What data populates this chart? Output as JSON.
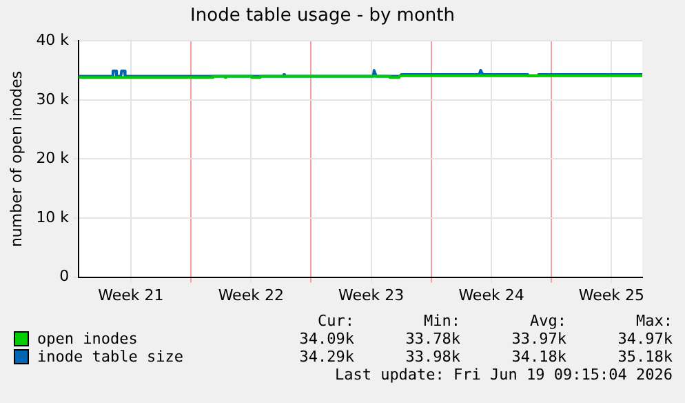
{
  "chart_data": {
    "type": "line",
    "title": "Inode table usage - by month",
    "ylabel": "number of open inodes",
    "xlim": [
      "2026-05-18T11:00",
      "2026-06-20T07:00"
    ],
    "xticks": [
      {
        "value": "2026-05-21T12:00",
        "label": "Week 21"
      },
      {
        "value": "2026-05-25",
        "label": null
      },
      {
        "value": "2026-05-28T12:00",
        "label": "Week 22"
      },
      {
        "value": "2026-06-01",
        "label": null
      },
      {
        "value": "2026-06-04T12:00",
        "label": "Week 23"
      },
      {
        "value": "2026-06-08",
        "label": null
      },
      {
        "value": "2026-06-11T12:00",
        "label": "Week 24"
      },
      {
        "value": "2026-06-15",
        "label": null
      },
      {
        "value": "2026-06-18T12:00",
        "label": "Week 25"
      }
    ],
    "ylim": [
      0,
      40000
    ],
    "yticks": [
      0,
      {
        "value": 10000,
        "label": "10 k"
      },
      {
        "value": 20000,
        "label": "20 k"
      },
      {
        "value": 30000,
        "label": "30 k"
      },
      {
        "value": 40000,
        "label": "40 k"
      }
    ],
    "grid": true,
    "legend": "bottom",
    "marker": "none",
    "line_style": "solid",
    "series": [
      {
        "name": "open inodes",
        "color": "#00cc00",
        "x": [
          "2026-05-18T11:00",
          "2026-05-26T06:00",
          "2026-05-26T07:00",
          "2026-05-26T23:00",
          "2026-05-27T00:00",
          "2026-05-27T01:00",
          "2026-05-28T12:00",
          "2026-05-28T13:00",
          "2026-05-29T01:00",
          "2026-05-29T02:00",
          "2026-06-05T13:00",
          "2026-06-05T14:00",
          "2026-06-06T03:00",
          "2026-06-06T04:00",
          "2026-06-20T07:00"
        ],
        "values": [
          33800,
          33800,
          34000,
          34000,
          33800,
          34000,
          34000,
          33800,
          33800,
          34000,
          34000,
          33800,
          33800,
          34100,
          34100
        ]
      },
      {
        "name": "inode table size",
        "color": "#0066b3",
        "x": [
          "2026-05-18T11:00",
          "2026-05-20T10:00",
          "2026-05-20T11:00",
          "2026-05-20T15:00",
          "2026-05-20T16:00",
          "2026-05-20T22:00",
          "2026-05-20T23:00",
          "2026-05-21T03:00",
          "2026-05-21T04:00",
          "2026-05-30T09:00",
          "2026-05-30T10:00",
          "2026-05-30T11:00",
          "2026-06-04T15:00",
          "2026-06-04T16:00",
          "2026-06-04T19:00",
          "2026-06-06T04:00",
          "2026-06-06T06:00",
          "2026-06-10T19:00",
          "2026-06-10T21:00",
          "2026-06-11T00:00",
          "2026-06-13T14:00",
          "2026-06-13T15:00",
          "2026-06-14T05:00",
          "2026-06-14T06:00",
          "2026-06-20T07:00"
        ],
        "values": [
          34000,
          34000,
          34900,
          34900,
          34000,
          34000,
          34900,
          34900,
          34000,
          34000,
          34300,
          34000,
          34000,
          35000,
          34000,
          34000,
          34300,
          34300,
          35000,
          34300,
          34300,
          34100,
          34100,
          34300,
          34300
        ]
      }
    ],
    "annotations": [
      "Cur:",
      "Min:",
      "Avg:",
      "Max:",
      "34.09k",
      "33.78k",
      "33.97k",
      "34.97k",
      "34.29k",
      "33.98k",
      "34.18k",
      "35.18k",
      "Last update: Fri Jun 19 09:15:04 2026"
    ]
  }
}
